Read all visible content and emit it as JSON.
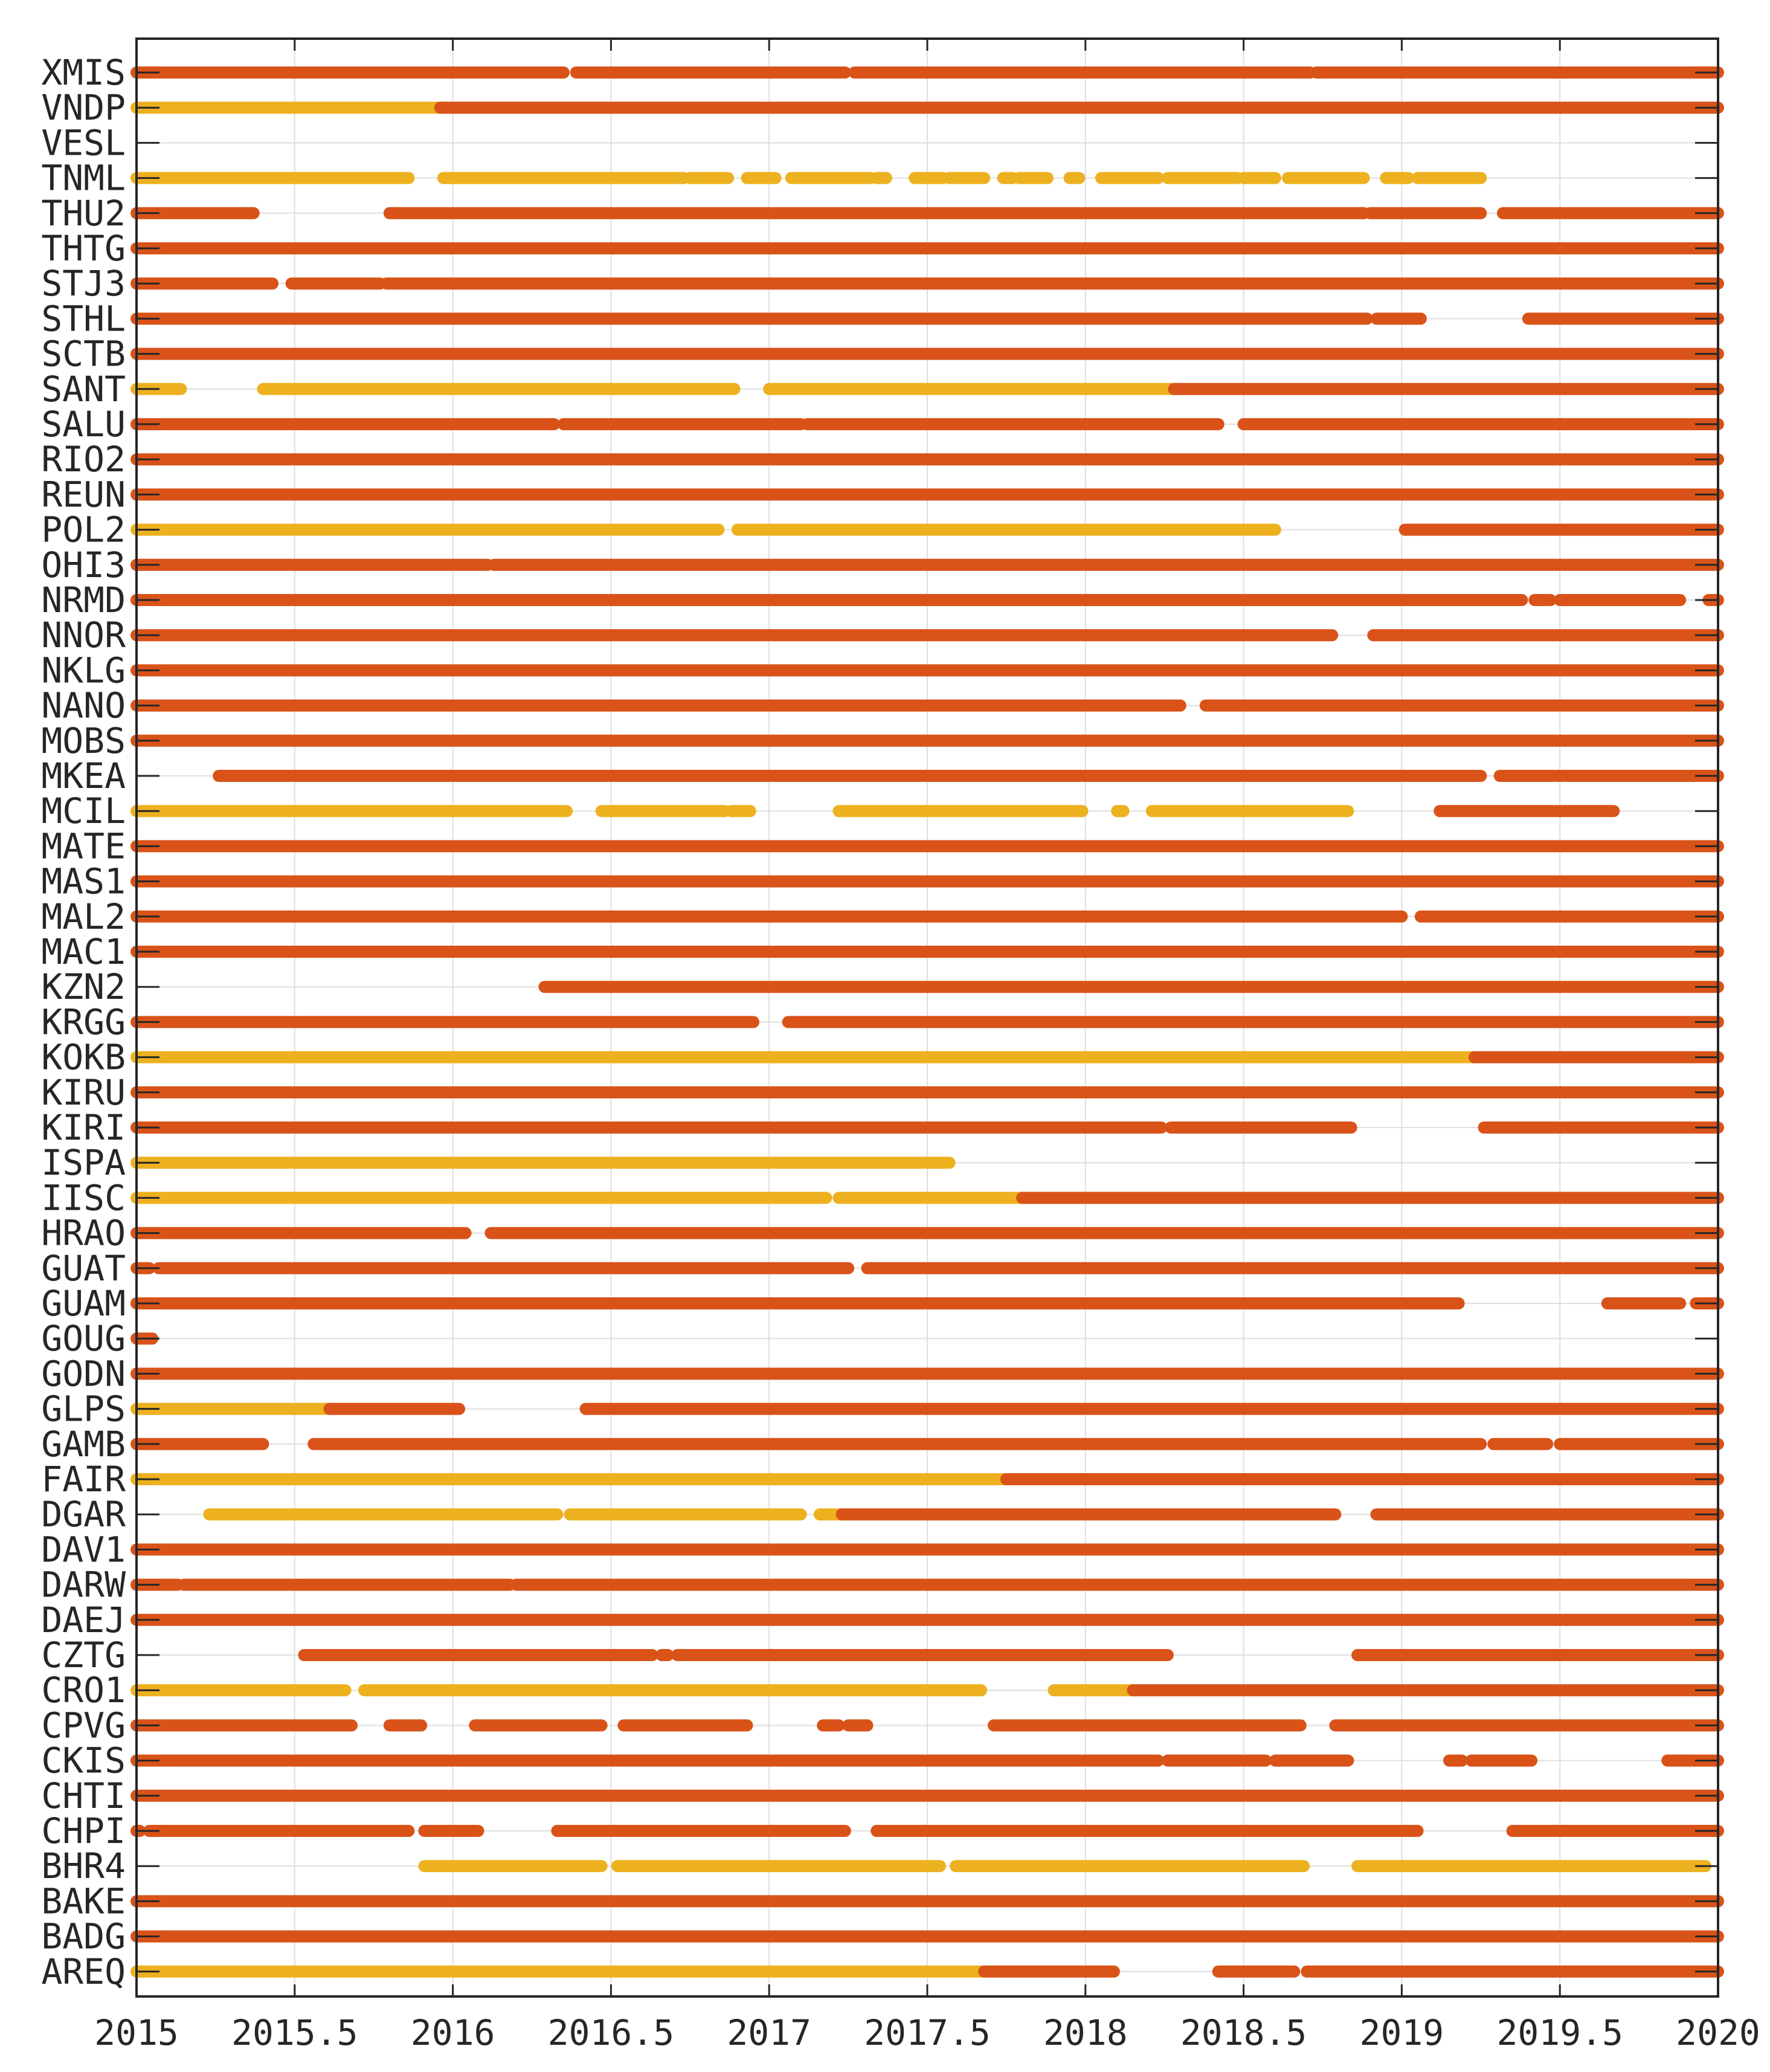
{
  "chart_data": {
    "type": "timeline",
    "title": "",
    "xlabel": "",
    "ylabel": "",
    "xlim": [
      2015,
      2020
    ],
    "grid": true,
    "colors": {
      "orange": "#d95319",
      "yellow": "#edb120"
    },
    "x_ticks": [
      {
        "value": 2015,
        "label": "2015"
      },
      {
        "value": 2015.5,
        "label": "2015.5"
      },
      {
        "value": 2016,
        "label": "2016"
      },
      {
        "value": 2016.5,
        "label": "2016.5"
      },
      {
        "value": 2017,
        "label": "2017"
      },
      {
        "value": 2017.5,
        "label": "2017.5"
      },
      {
        "value": 2018,
        "label": "2018"
      },
      {
        "value": 2018.5,
        "label": "2018.5"
      },
      {
        "value": 2019,
        "label": "2019"
      },
      {
        "value": 2019.5,
        "label": "2019.5"
      },
      {
        "value": 2020,
        "label": "2020"
      }
    ],
    "stations": [
      {
        "name": "XMIS",
        "segments": [
          [
            2015.0,
            2016.35,
            "orange"
          ],
          [
            2016.39,
            2017.24,
            "orange"
          ],
          [
            2017.27,
            2018.71,
            "orange"
          ],
          [
            2018.73,
            2020.0,
            "orange"
          ]
        ]
      },
      {
        "name": "VNDP",
        "segments": [
          [
            2015.0,
            2015.96,
            "yellow"
          ],
          [
            2015.96,
            2020.0,
            "orange"
          ]
        ]
      },
      {
        "name": "VESL",
        "segments": []
      },
      {
        "name": "TNML",
        "segments": [
          [
            2015.0,
            2015.86,
            "yellow"
          ],
          [
            2015.97,
            2016.73,
            "yellow"
          ],
          [
            2016.75,
            2016.87,
            "yellow"
          ],
          [
            2016.93,
            2017.02,
            "yellow"
          ],
          [
            2017.07,
            2017.32,
            "yellow"
          ],
          [
            2017.34,
            2017.37,
            "yellow"
          ],
          [
            2017.46,
            2017.55,
            "yellow"
          ],
          [
            2017.57,
            2017.68,
            "yellow"
          ],
          [
            2017.74,
            2017.77,
            "yellow"
          ],
          [
            2017.79,
            2017.88,
            "yellow"
          ],
          [
            2017.95,
            2017.98,
            "yellow"
          ],
          [
            2018.05,
            2018.23,
            "yellow"
          ],
          [
            2018.26,
            2018.48,
            "yellow"
          ],
          [
            2018.5,
            2018.6,
            "yellow"
          ],
          [
            2018.64,
            2018.88,
            "yellow"
          ],
          [
            2018.95,
            2019.02,
            "yellow"
          ],
          [
            2019.05,
            2019.25,
            "yellow"
          ]
        ]
      },
      {
        "name": "THU2",
        "segments": [
          [
            2015.0,
            2015.37,
            "orange"
          ],
          [
            2015.8,
            2018.88,
            "orange"
          ],
          [
            2018.9,
            2019.25,
            "orange"
          ],
          [
            2019.32,
            2020.0,
            "orange"
          ]
        ]
      },
      {
        "name": "THTG",
        "segments": [
          [
            2015.0,
            2020.0,
            "orange"
          ]
        ]
      },
      {
        "name": "STJ3",
        "segments": [
          [
            2015.0,
            2015.43,
            "orange"
          ],
          [
            2015.49,
            2015.77,
            "orange"
          ],
          [
            2015.79,
            2020.0,
            "orange"
          ]
        ]
      },
      {
        "name": "STHL",
        "segments": [
          [
            2015.0,
            2018.89,
            "orange"
          ],
          [
            2018.92,
            2019.06,
            "orange"
          ],
          [
            2019.4,
            2020.0,
            "orange"
          ]
        ]
      },
      {
        "name": "SCTB",
        "segments": [
          [
            2015.0,
            2020.0,
            "orange"
          ]
        ]
      },
      {
        "name": "SANT",
        "segments": [
          [
            2015.0,
            2015.14,
            "yellow"
          ],
          [
            2015.4,
            2016.89,
            "yellow"
          ],
          [
            2017.0,
            2018.28,
            "yellow"
          ],
          [
            2018.28,
            2020.0,
            "orange"
          ]
        ]
      },
      {
        "name": "SALU",
        "segments": [
          [
            2015.0,
            2016.32,
            "orange"
          ],
          [
            2016.35,
            2017.1,
            "orange"
          ],
          [
            2017.12,
            2018.42,
            "orange"
          ],
          [
            2018.5,
            2020.0,
            "orange"
          ]
        ]
      },
      {
        "name": "RIO2",
        "segments": [
          [
            2015.0,
            2020.0,
            "orange"
          ]
        ]
      },
      {
        "name": "REUN",
        "segments": [
          [
            2015.0,
            2020.0,
            "orange"
          ]
        ]
      },
      {
        "name": "POL2",
        "segments": [
          [
            2015.0,
            2016.84,
            "yellow"
          ],
          [
            2016.9,
            2018.6,
            "yellow"
          ],
          [
            2019.01,
            2020.0,
            "orange"
          ]
        ]
      },
      {
        "name": "OHI3",
        "segments": [
          [
            2015.0,
            2016.11,
            "orange"
          ],
          [
            2016.13,
            2020.0,
            "orange"
          ]
        ]
      },
      {
        "name": "NRMD",
        "segments": [
          [
            2015.0,
            2019.38,
            "orange"
          ],
          [
            2019.42,
            2019.47,
            "orange"
          ],
          [
            2019.5,
            2019.88,
            "orange"
          ],
          [
            2019.97,
            2020.0,
            "orange"
          ]
        ]
      },
      {
        "name": "NNOR",
        "segments": [
          [
            2015.0,
            2018.78,
            "orange"
          ],
          [
            2018.91,
            2020.0,
            "orange"
          ]
        ]
      },
      {
        "name": "NKLG",
        "segments": [
          [
            2015.0,
            2020.0,
            "orange"
          ]
        ]
      },
      {
        "name": "NANO",
        "segments": [
          [
            2015.0,
            2018.3,
            "orange"
          ],
          [
            2018.38,
            2020.0,
            "orange"
          ]
        ]
      },
      {
        "name": "MOBS",
        "segments": [
          [
            2015.0,
            2020.0,
            "orange"
          ]
        ]
      },
      {
        "name": "MKEA",
        "segments": [
          [
            2015.26,
            2019.25,
            "orange"
          ],
          [
            2019.31,
            2020.0,
            "orange"
          ]
        ]
      },
      {
        "name": "MCIL",
        "segments": [
          [
            2015.0,
            2016.36,
            "yellow"
          ],
          [
            2016.47,
            2016.86,
            "yellow"
          ],
          [
            2016.88,
            2016.94,
            "yellow"
          ],
          [
            2017.22,
            2017.99,
            "yellow"
          ],
          [
            2018.1,
            2018.12,
            "yellow"
          ],
          [
            2018.21,
            2018.83,
            "yellow"
          ],
          [
            2019.12,
            2019.67,
            "orange"
          ]
        ]
      },
      {
        "name": "MATE",
        "segments": [
          [
            2015.0,
            2020.0,
            "orange"
          ]
        ]
      },
      {
        "name": "MAS1",
        "segments": [
          [
            2015.0,
            2020.0,
            "orange"
          ]
        ]
      },
      {
        "name": "MAL2",
        "segments": [
          [
            2015.0,
            2019.0,
            "orange"
          ],
          [
            2019.06,
            2020.0,
            "orange"
          ]
        ]
      },
      {
        "name": "MAC1",
        "segments": [
          [
            2015.0,
            2020.0,
            "orange"
          ]
        ]
      },
      {
        "name": "KZN2",
        "segments": [
          [
            2016.29,
            2020.0,
            "orange"
          ]
        ]
      },
      {
        "name": "KRGG",
        "segments": [
          [
            2015.0,
            2016.95,
            "orange"
          ],
          [
            2017.06,
            2020.0,
            "orange"
          ]
        ]
      },
      {
        "name": "KOKB",
        "segments": [
          [
            2015.0,
            2019.23,
            "yellow"
          ],
          [
            2019.23,
            2020.0,
            "orange"
          ]
        ]
      },
      {
        "name": "KIRU",
        "segments": [
          [
            2015.0,
            2020.0,
            "orange"
          ]
        ]
      },
      {
        "name": "KIRI",
        "segments": [
          [
            2015.0,
            2018.24,
            "orange"
          ],
          [
            2018.27,
            2018.84,
            "orange"
          ],
          [
            2019.26,
            2020.0,
            "orange"
          ]
        ]
      },
      {
        "name": "ISPA",
        "segments": [
          [
            2015.0,
            2017.57,
            "yellow"
          ]
        ]
      },
      {
        "name": "IISC",
        "segments": [
          [
            2015.0,
            2017.18,
            "yellow"
          ],
          [
            2017.22,
            2017.8,
            "yellow"
          ],
          [
            2017.8,
            2020.0,
            "orange"
          ]
        ]
      },
      {
        "name": "HRAO",
        "segments": [
          [
            2015.0,
            2016.04,
            "orange"
          ],
          [
            2016.12,
            2020.0,
            "orange"
          ]
        ]
      },
      {
        "name": "GUAT",
        "segments": [
          [
            2015.0,
            2015.04,
            "orange"
          ],
          [
            2015.07,
            2017.25,
            "orange"
          ],
          [
            2017.31,
            2020.0,
            "orange"
          ]
        ]
      },
      {
        "name": "GUAM",
        "segments": [
          [
            2015.0,
            2019.18,
            "orange"
          ],
          [
            2019.65,
            2019.88,
            "orange"
          ],
          [
            2019.93,
            2020.0,
            "orange"
          ]
        ]
      },
      {
        "name": "GOUG",
        "segments": [
          [
            2015.0,
            2015.05,
            "orange"
          ]
        ]
      },
      {
        "name": "GODN",
        "segments": [
          [
            2015.0,
            2020.0,
            "orange"
          ]
        ]
      },
      {
        "name": "GLPS",
        "segments": [
          [
            2015.0,
            2015.61,
            "yellow"
          ],
          [
            2015.61,
            2016.02,
            "orange"
          ],
          [
            2016.42,
            2020.0,
            "orange"
          ]
        ]
      },
      {
        "name": "GAMB",
        "segments": [
          [
            2015.0,
            2015.4,
            "orange"
          ],
          [
            2015.56,
            2019.25,
            "orange"
          ],
          [
            2019.29,
            2019.46,
            "orange"
          ],
          [
            2019.5,
            2020.0,
            "orange"
          ]
        ]
      },
      {
        "name": "FAIR",
        "segments": [
          [
            2015.0,
            2017.75,
            "yellow"
          ],
          [
            2017.75,
            2020.0,
            "orange"
          ]
        ]
      },
      {
        "name": "DGAR",
        "segments": [
          [
            2015.23,
            2016.33,
            "yellow"
          ],
          [
            2016.37,
            2017.1,
            "yellow"
          ],
          [
            2017.16,
            2017.23,
            "yellow"
          ],
          [
            2017.23,
            2018.79,
            "orange"
          ],
          [
            2018.92,
            2020.0,
            "orange"
          ]
        ]
      },
      {
        "name": "DAV1",
        "segments": [
          [
            2015.0,
            2020.0,
            "orange"
          ]
        ]
      },
      {
        "name": "DARW",
        "segments": [
          [
            2015.0,
            2015.13,
            "orange"
          ],
          [
            2015.15,
            2016.18,
            "orange"
          ],
          [
            2016.2,
            2020.0,
            "orange"
          ]
        ]
      },
      {
        "name": "DAEJ",
        "segments": [
          [
            2015.0,
            2020.0,
            "orange"
          ]
        ]
      },
      {
        "name": "CZTG",
        "segments": [
          [
            2015.53,
            2016.63,
            "orange"
          ],
          [
            2016.66,
            2016.68,
            "orange"
          ],
          [
            2016.71,
            2018.26,
            "orange"
          ],
          [
            2018.86,
            2020.0,
            "orange"
          ]
        ]
      },
      {
        "name": "CRO1",
        "segments": [
          [
            2015.0,
            2015.66,
            "yellow"
          ],
          [
            2015.72,
            2017.67,
            "yellow"
          ],
          [
            2017.9,
            2018.15,
            "yellow"
          ],
          [
            2018.15,
            2020.0,
            "orange"
          ]
        ]
      },
      {
        "name": "CPVG",
        "segments": [
          [
            2015.0,
            2015.68,
            "orange"
          ],
          [
            2015.8,
            2015.9,
            "orange"
          ],
          [
            2016.07,
            2016.47,
            "orange"
          ],
          [
            2016.54,
            2016.93,
            "orange"
          ],
          [
            2017.17,
            2017.22,
            "orange"
          ],
          [
            2017.25,
            2017.31,
            "orange"
          ],
          [
            2017.71,
            2018.68,
            "orange"
          ],
          [
            2018.79,
            2020.0,
            "orange"
          ]
        ]
      },
      {
        "name": "CKIS",
        "segments": [
          [
            2015.0,
            2018.23,
            "orange"
          ],
          [
            2018.26,
            2018.57,
            "orange"
          ],
          [
            2018.6,
            2018.83,
            "orange"
          ],
          [
            2019.15,
            2019.19,
            "orange"
          ],
          [
            2019.22,
            2019.41,
            "orange"
          ],
          [
            2019.84,
            2020.0,
            "orange"
          ]
        ]
      },
      {
        "name": "CHTI",
        "segments": [
          [
            2015.0,
            2020.0,
            "orange"
          ]
        ]
      },
      {
        "name": "CHPI",
        "segments": [
          [
            2015.0,
            2015.01,
            "orange"
          ],
          [
            2015.04,
            2015.86,
            "orange"
          ],
          [
            2015.91,
            2016.08,
            "orange"
          ],
          [
            2016.33,
            2017.24,
            "orange"
          ],
          [
            2017.34,
            2019.05,
            "orange"
          ],
          [
            2019.35,
            2020.0,
            "orange"
          ]
        ]
      },
      {
        "name": "BHR4",
        "segments": [
          [
            2015.91,
            2016.47,
            "yellow"
          ],
          [
            2016.52,
            2017.54,
            "yellow"
          ],
          [
            2017.59,
            2018.69,
            "yellow"
          ],
          [
            2018.86,
            2019.96,
            "yellow"
          ]
        ]
      },
      {
        "name": "BAKE",
        "segments": [
          [
            2015.0,
            2020.0,
            "orange"
          ]
        ]
      },
      {
        "name": "BADG",
        "segments": [
          [
            2015.0,
            2020.0,
            "orange"
          ]
        ]
      },
      {
        "name": "AREQ",
        "segments": [
          [
            2015.0,
            2017.68,
            "yellow"
          ],
          [
            2017.68,
            2018.09,
            "orange"
          ],
          [
            2018.42,
            2018.66,
            "orange"
          ],
          [
            2018.7,
            2020.0,
            "orange"
          ]
        ]
      }
    ]
  }
}
